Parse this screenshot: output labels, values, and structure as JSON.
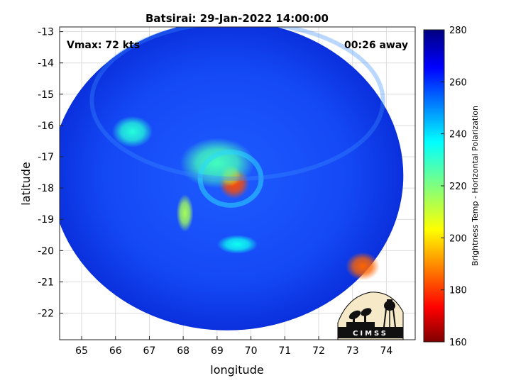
{
  "chart_data": {
    "type": "heatmap",
    "title": "Batsirai: 29-Jan-2022 14:00:00",
    "xlabel": "longitude",
    "ylabel": "latitude",
    "xlim": [
      64.35,
      74.85
    ],
    "ylim": [
      -22.85,
      -12.85
    ],
    "xticks": [
      65,
      66,
      67,
      68,
      69,
      70,
      71,
      72,
      73,
      74
    ],
    "yticks": [
      -13,
      -14,
      -15,
      -16,
      -17,
      -18,
      -19,
      -20,
      -21,
      -22
    ],
    "grid": true,
    "annotations": {
      "vmax": "Vmax: 72 kts",
      "time_offset": "00:26 away"
    },
    "colorbar": {
      "label": "Brightness Temp - Horizontal Polarization",
      "range": [
        160,
        280
      ],
      "ticks": [
        160,
        180,
        200,
        220,
        240,
        260,
        280
      ],
      "colormap": "jet"
    },
    "swath": {
      "center": [
        69.3,
        -17.6
      ],
      "radius_lon": 5.2,
      "radius_lat": 4.95,
      "background_value": 262
    },
    "features": [
      {
        "name": "eyewall",
        "lon": 69.5,
        "lat": -17.85,
        "value": 182
      },
      {
        "name": "eyewall-core",
        "lon": 69.4,
        "lat": -17.6,
        "value": 192
      },
      {
        "name": "inner-band",
        "lon": 69.0,
        "lat": -17.2,
        "value": 228
      },
      {
        "name": "west-band",
        "lon": 68.05,
        "lat": -18.8,
        "value": 215
      },
      {
        "name": "south-band",
        "lon": 69.6,
        "lat": -19.8,
        "value": 235
      },
      {
        "name": "northwest-cells",
        "lon": 66.5,
        "lat": -16.2,
        "value": 232
      },
      {
        "name": "southeast-convection",
        "lon": 73.3,
        "lat": -20.5,
        "value": 185
      }
    ]
  },
  "logo": {
    "text": "CIMSS"
  },
  "colors": {
    "background_min": "#0a2de0",
    "background_max": "#1a55ff"
  }
}
